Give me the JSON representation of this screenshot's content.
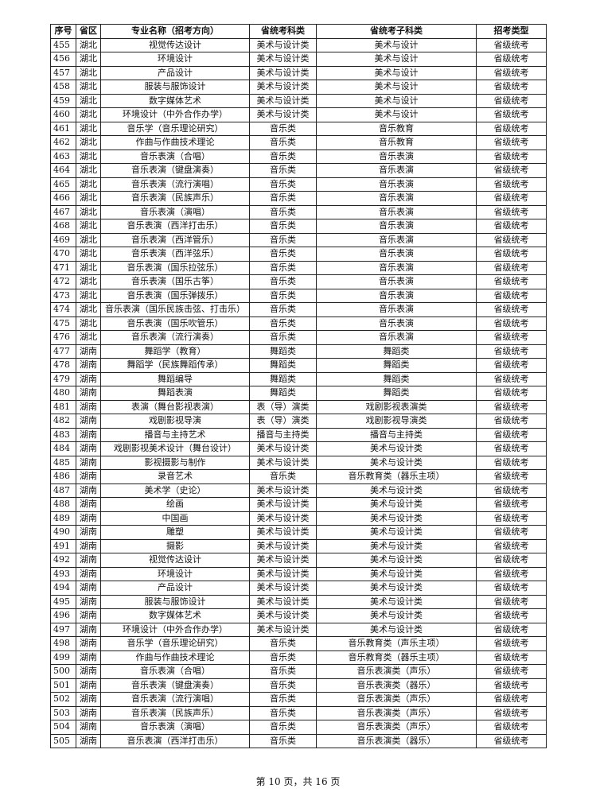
{
  "table": {
    "header": [
      "序号",
      "省区",
      "专业名称（招考方向）",
      "省统考科类",
      "省统考子科类",
      "招考类型"
    ],
    "rows": [
      [
        "455",
        "湖北",
        "视觉传达设计",
        "美术与设计类",
        "美术与设计",
        "省级统考"
      ],
      [
        "456",
        "湖北",
        "环境设计",
        "美术与设计类",
        "美术与设计",
        "省级统考"
      ],
      [
        "457",
        "湖北",
        "产品设计",
        "美术与设计类",
        "美术与设计",
        "省级统考"
      ],
      [
        "458",
        "湖北",
        "服装与服饰设计",
        "美术与设计类",
        "美术与设计",
        "省级统考"
      ],
      [
        "459",
        "湖北",
        "数字媒体艺术",
        "美术与设计类",
        "美术与设计",
        "省级统考"
      ],
      [
        "460",
        "湖北",
        "环境设计（中外合作办学）",
        "美术与设计类",
        "美术与设计",
        "省级统考"
      ],
      [
        "461",
        "湖北",
        "音乐学（音乐理论研究）",
        "音乐类",
        "音乐教育",
        "省级统考"
      ],
      [
        "462",
        "湖北",
        "作曲与作曲技术理论",
        "音乐类",
        "音乐教育",
        "省级统考"
      ],
      [
        "463",
        "湖北",
        "音乐表演（合唱）",
        "音乐类",
        "音乐表演",
        "省级统考"
      ],
      [
        "464",
        "湖北",
        "音乐表演（键盘演奏）",
        "音乐类",
        "音乐表演",
        "省级统考"
      ],
      [
        "465",
        "湖北",
        "音乐表演（流行演唱）",
        "音乐类",
        "音乐表演",
        "省级统考"
      ],
      [
        "466",
        "湖北",
        "音乐表演（民族声乐）",
        "音乐类",
        "音乐表演",
        "省级统考"
      ],
      [
        "467",
        "湖北",
        "音乐表演（演唱）",
        "音乐类",
        "音乐表演",
        "省级统考"
      ],
      [
        "468",
        "湖北",
        "音乐表演（西洋打击乐）",
        "音乐类",
        "音乐表演",
        "省级统考"
      ],
      [
        "469",
        "湖北",
        "音乐表演（西洋管乐）",
        "音乐类",
        "音乐表演",
        "省级统考"
      ],
      [
        "470",
        "湖北",
        "音乐表演（西洋弦乐）",
        "音乐类",
        "音乐表演",
        "省级统考"
      ],
      [
        "471",
        "湖北",
        "音乐表演（国乐拉弦乐）",
        "音乐类",
        "音乐表演",
        "省级统考"
      ],
      [
        "472",
        "湖北",
        "音乐表演（国乐古筝）",
        "音乐类",
        "音乐表演",
        "省级统考"
      ],
      [
        "473",
        "湖北",
        "音乐表演（国乐弹拨乐）",
        "音乐类",
        "音乐表演",
        "省级统考"
      ],
      [
        "474",
        "湖北",
        "音乐表演（国乐民族击弦、打击乐）",
        "音乐类",
        "音乐表演",
        "省级统考"
      ],
      [
        "475",
        "湖北",
        "音乐表演（国乐吹管乐）",
        "音乐类",
        "音乐表演",
        "省级统考"
      ],
      [
        "476",
        "湖北",
        "音乐表演（流行演奏）",
        "音乐类",
        "音乐表演",
        "省级统考"
      ],
      [
        "477",
        "湖南",
        "舞蹈学（教育）",
        "舞蹈类",
        "舞蹈类",
        "省级统考"
      ],
      [
        "478",
        "湖南",
        "舞蹈学（民族舞蹈传承）",
        "舞蹈类",
        "舞蹈类",
        "省级统考"
      ],
      [
        "479",
        "湖南",
        "舞蹈编导",
        "舞蹈类",
        "舞蹈类",
        "省级统考"
      ],
      [
        "480",
        "湖南",
        "舞蹈表演",
        "舞蹈类",
        "舞蹈类",
        "省级统考"
      ],
      [
        "481",
        "湖南",
        "表演（舞台影视表演）",
        "表（导）演类",
        "戏剧影视表演类",
        "省级统考"
      ],
      [
        "482",
        "湖南",
        "戏剧影视导演",
        "表（导）演类",
        "戏剧影视导演类",
        "省级统考"
      ],
      [
        "483",
        "湖南",
        "播音与主持艺术",
        "播音与主持类",
        "播音与主持类",
        "省级统考"
      ],
      [
        "484",
        "湖南",
        "戏剧影视美术设计（舞台设计）",
        "美术与设计类",
        "美术与设计类",
        "省级统考"
      ],
      [
        "485",
        "湖南",
        "影视摄影与制作",
        "美术与设计类",
        "美术与设计类",
        "省级统考"
      ],
      [
        "486",
        "湖南",
        "录音艺术",
        "音乐类",
        "音乐教育类（器乐主项）",
        "省级统考"
      ],
      [
        "487",
        "湖南",
        "美术学（史论）",
        "美术与设计类",
        "美术与设计类",
        "省级统考"
      ],
      [
        "488",
        "湖南",
        "绘画",
        "美术与设计类",
        "美术与设计类",
        "省级统考"
      ],
      [
        "489",
        "湖南",
        "中国画",
        "美术与设计类",
        "美术与设计类",
        "省级统考"
      ],
      [
        "490",
        "湖南",
        "雕塑",
        "美术与设计类",
        "美术与设计类",
        "省级统考"
      ],
      [
        "491",
        "湖南",
        "摄影",
        "美术与设计类",
        "美术与设计类",
        "省级统考"
      ],
      [
        "492",
        "湖南",
        "视觉传达设计",
        "美术与设计类",
        "美术与设计类",
        "省级统考"
      ],
      [
        "493",
        "湖南",
        "环境设计",
        "美术与设计类",
        "美术与设计类",
        "省级统考"
      ],
      [
        "494",
        "湖南",
        "产品设计",
        "美术与设计类",
        "美术与设计类",
        "省级统考"
      ],
      [
        "495",
        "湖南",
        "服装与服饰设计",
        "美术与设计类",
        "美术与设计类",
        "省级统考"
      ],
      [
        "496",
        "湖南",
        "数字媒体艺术",
        "美术与设计类",
        "美术与设计类",
        "省级统考"
      ],
      [
        "497",
        "湖南",
        "环境设计（中外合作办学）",
        "美术与设计类",
        "美术与设计类",
        "省级统考"
      ],
      [
        "498",
        "湖南",
        "音乐学（音乐理论研究）",
        "音乐类",
        "音乐教育类（声乐主项）",
        "省级统考"
      ],
      [
        "499",
        "湖南",
        "作曲与作曲技术理论",
        "音乐类",
        "音乐教育类（器乐主项）",
        "省级统考"
      ],
      [
        "500",
        "湖南",
        "音乐表演（合唱）",
        "音乐类",
        "音乐表演类（声乐）",
        "省级统考"
      ],
      [
        "501",
        "湖南",
        "音乐表演（键盘演奏）",
        "音乐类",
        "音乐表演类（器乐）",
        "省级统考"
      ],
      [
        "502",
        "湖南",
        "音乐表演（流行演唱）",
        "音乐类",
        "音乐表演类（声乐）",
        "省级统考"
      ],
      [
        "503",
        "湖南",
        "音乐表演（民族声乐）",
        "音乐类",
        "音乐表演类（声乐）",
        "省级统考"
      ],
      [
        "504",
        "湖南",
        "音乐表演（演唱）",
        "音乐类",
        "音乐表演类（声乐）",
        "省级统考"
      ],
      [
        "505",
        "湖南",
        "音乐表演（西洋打击乐）",
        "音乐类",
        "音乐表演类（器乐）",
        "省级统考"
      ]
    ]
  },
  "footer": "第 10 页，共 16 页"
}
